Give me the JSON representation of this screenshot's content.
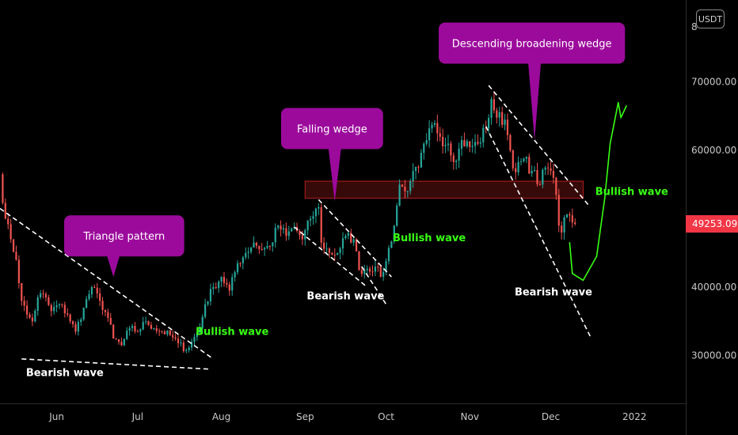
{
  "chart_data": {
    "type": "candlestick",
    "currency": "USDT",
    "last_price": "49253.09",
    "ylim": [
      23000,
      82000
    ],
    "y_ticks": [
      "70000.00",
      "60000.00",
      "40000.00",
      "30000.00"
    ],
    "y_tick_values": [
      70000,
      60000,
      40000,
      30000
    ],
    "y_tick_partial": "8",
    "x_ticks": [
      "Jun",
      "Jul",
      "Aug",
      "Sep",
      "Oct",
      "Nov",
      "Dec",
      "2022"
    ],
    "x_tick_dates": [
      "2021-06-01",
      "2021-07-01",
      "2021-08-01",
      "2021-09-01",
      "2021-10-01",
      "2021-11-01",
      "2021-12-01",
      "2022-01-01"
    ],
    "x_range": [
      "2021-05-11",
      "2022-01-20"
    ],
    "close_series": [
      [
        "2021-05-11",
        56500
      ],
      [
        "2021-05-13",
        50000
      ],
      [
        "2021-05-15",
        47000
      ],
      [
        "2021-05-17",
        44000
      ],
      [
        "2021-05-19",
        38000
      ],
      [
        "2021-05-21",
        36000
      ],
      [
        "2021-05-23",
        35000
      ],
      [
        "2021-05-25",
        38500
      ],
      [
        "2021-05-27",
        39000
      ],
      [
        "2021-05-30",
        36500
      ],
      [
        "2021-06-02",
        37500
      ],
      [
        "2021-06-05",
        36000
      ],
      [
        "2021-06-08",
        33500
      ],
      [
        "2021-06-11",
        37000
      ],
      [
        "2021-06-14",
        40000
      ],
      [
        "2021-06-17",
        38000
      ],
      [
        "2021-06-20",
        35500
      ],
      [
        "2021-06-22",
        32500
      ],
      [
        "2021-06-25",
        31500
      ],
      [
        "2021-06-28",
        34000
      ],
      [
        "2021-07-01",
        33500
      ],
      [
        "2021-07-04",
        35000
      ],
      [
        "2021-07-07",
        34000
      ],
      [
        "2021-07-10",
        33500
      ],
      [
        "2021-07-13",
        33000
      ],
      [
        "2021-07-16",
        31800
      ],
      [
        "2021-07-19",
        30800
      ],
      [
        "2021-07-21",
        32000
      ],
      [
        "2021-07-24",
        34000
      ],
      [
        "2021-07-26",
        37500
      ],
      [
        "2021-07-29",
        40000
      ],
      [
        "2021-08-01",
        41500
      ],
      [
        "2021-08-04",
        39500
      ],
      [
        "2021-08-07",
        43500
      ],
      [
        "2021-08-10",
        45000
      ],
      [
        "2021-08-13",
        46500
      ],
      [
        "2021-08-16",
        45500
      ],
      [
        "2021-08-19",
        46000
      ],
      [
        "2021-08-22",
        49000
      ],
      [
        "2021-08-25",
        47500
      ],
      [
        "2021-08-28",
        48800
      ],
      [
        "2021-08-31",
        47000
      ],
      [
        "2021-09-03",
        50000
      ],
      [
        "2021-09-06",
        51700
      ],
      [
        "2021-09-07",
        46500
      ],
      [
        "2021-09-10",
        45000
      ],
      [
        "2021-09-13",
        45000
      ],
      [
        "2021-09-16",
        47500
      ],
      [
        "2021-09-19",
        47000
      ],
      [
        "2021-09-21",
        42500
      ],
      [
        "2021-09-24",
        42700
      ],
      [
        "2021-09-27",
        43000
      ],
      [
        "2021-09-29",
        41500
      ],
      [
        "2021-10-01",
        43800
      ],
      [
        "2021-10-04",
        49000
      ],
      [
        "2021-10-06",
        55000
      ],
      [
        "2021-10-08",
        54000
      ],
      [
        "2021-10-10",
        55500
      ],
      [
        "2021-10-13",
        57500
      ],
      [
        "2021-10-16",
        61500
      ],
      [
        "2021-10-19",
        64000
      ],
      [
        "2021-10-21",
        62000
      ],
      [
        "2021-10-24",
        61000
      ],
      [
        "2021-10-27",
        58500
      ],
      [
        "2021-10-29",
        61500
      ],
      [
        "2021-11-01",
        60500
      ],
      [
        "2021-11-04",
        61000
      ],
      [
        "2021-11-07",
        63200
      ],
      [
        "2021-11-09",
        67500
      ],
      [
        "2021-11-11",
        64800
      ],
      [
        "2021-11-14",
        64500
      ],
      [
        "2021-11-16",
        60000
      ],
      [
        "2021-11-18",
        56800
      ],
      [
        "2021-11-21",
        58800
      ],
      [
        "2021-11-24",
        57000
      ],
      [
        "2021-11-27",
        55000
      ],
      [
        "2021-11-29",
        57500
      ],
      [
        "2021-12-01",
        57000
      ],
      [
        "2021-12-02",
        56000
      ],
      [
        "2021-12-03",
        53500
      ],
      [
        "2021-12-04",
        49000
      ],
      [
        "2021-12-05",
        48000
      ],
      [
        "2021-12-06",
        50200
      ],
      [
        "2021-12-08",
        50500
      ],
      [
        "2021-12-10",
        49253
      ]
    ],
    "zone": {
      "from": "2021-09-01",
      "to": "2021-12-13",
      "top": 55500,
      "bottom": 53000
    },
    "trendlines": [
      {
        "style": "dashed",
        "points": [
          [
            "2021-05-11",
            51500
          ],
          [
            "2021-07-29",
            29500
          ]
        ]
      },
      {
        "style": "dashed",
        "points": [
          [
            "2021-05-19",
            29500
          ],
          [
            "2021-07-28",
            28000
          ]
        ]
      },
      {
        "style": "dashed",
        "points": [
          [
            "2021-08-28",
            48800
          ],
          [
            "2021-09-24",
            40000
          ]
        ]
      },
      {
        "style": "dashed",
        "points": [
          [
            "2021-09-06",
            52800
          ],
          [
            "2021-10-03",
            41500
          ]
        ]
      },
      {
        "style": "dashed",
        "points": [
          [
            "2021-09-22",
            43000
          ],
          [
            "2021-10-01",
            37500
          ]
        ]
      },
      {
        "style": "dashed",
        "points": [
          [
            "2021-11-08",
            69500
          ],
          [
            "2021-12-15",
            52000
          ]
        ]
      },
      {
        "style": "dashed",
        "points": [
          [
            "2021-11-07",
            63500
          ],
          [
            "2021-12-16",
            32500
          ]
        ]
      }
    ],
    "projection": {
      "color": "#39ff14",
      "points": [
        [
          "2021-12-08",
          46500
        ],
        [
          "2021-12-09",
          42000
        ],
        [
          "2021-12-13",
          41000
        ],
        [
          "2021-12-18",
          44500
        ],
        [
          "2021-12-21",
          53000
        ],
        [
          "2021-12-23",
          61000
        ],
        [
          "2021-12-26",
          67000
        ],
        [
          "2021-12-27",
          64800
        ],
        [
          "2021-12-29",
          66500
        ]
      ]
    },
    "callouts": [
      {
        "text": "Triangle pattern",
        "at": [
          "2021-06-26",
          47500
        ],
        "pointer": [
          "2021-06-22",
          41500
        ]
      },
      {
        "text": "Falling wedge",
        "at": [
          "2021-09-11",
          63200
        ],
        "pointer": [
          "2021-09-12",
          52500
        ]
      },
      {
        "text": "Descending broadening wedge",
        "at": [
          "2021-11-24",
          75700
        ],
        "pointer": [
          "2021-11-25",
          61500
        ]
      }
    ],
    "annotations": [
      {
        "text": "Bearish wave",
        "color": "white",
        "at": [
          "2021-06-04",
          27000
        ]
      },
      {
        "text": "Bullish wave",
        "color": "green",
        "at": [
          "2021-08-05",
          33000
        ]
      },
      {
        "text": "Bearish wave",
        "color": "white",
        "at": [
          "2021-09-16",
          38200
        ]
      },
      {
        "text": "Bullish wave",
        "color": "green",
        "at": [
          "2021-10-17",
          46700
        ]
      },
      {
        "text": "Bearish wave",
        "color": "white",
        "at": [
          "2021-12-02",
          38800
        ]
      },
      {
        "text": "Bullish wave",
        "color": "green",
        "at": [
          "2021-12-31",
          53500
        ]
      }
    ],
    "colors": {
      "background": "#000000",
      "up_candle": "#26a69a",
      "down_candle": "#ef5350",
      "callout": "#9c0a9c",
      "zone_fill": "#4a0d0d",
      "zone_border": "#b71c1c",
      "price_badge": "#f23645",
      "trendline": "#ffffff",
      "projection": "#39ff14"
    }
  }
}
